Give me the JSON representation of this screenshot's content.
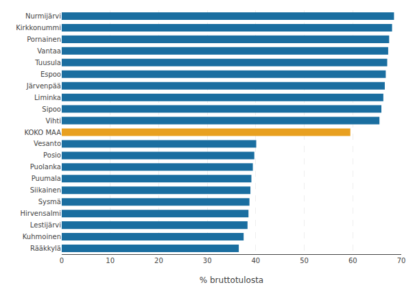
{
  "chart_data": {
    "type": "bar",
    "orientation": "horizontal",
    "categories": [
      "Rääkkylä",
      "Kuhmoinen",
      "Lestijärvi",
      "Hirvensalmi",
      "Sysmä",
      "Siikainen",
      "Puumala",
      "Puolanka",
      "Posio",
      "Vesanto",
      "KOKO MAA",
      "Vihti",
      "Sipoo",
      "Liminka",
      "Järvenpää",
      "Espoo",
      "Tuusula",
      "Vantaa",
      "Pornainen",
      "Kirkkonummi",
      "Nurmijärvi"
    ],
    "values": [
      36.5,
      37.5,
      38.3,
      38.5,
      38.7,
      38.9,
      39.1,
      39.4,
      39.7,
      40.1,
      59.5,
      65.5,
      65.9,
      66.3,
      66.6,
      66.8,
      67.1,
      67.3,
      67.5,
      68.1,
      68.5
    ],
    "colors": [
      "#1a6ea0",
      "#1a6ea0",
      "#1a6ea0",
      "#1a6ea0",
      "#1a6ea0",
      "#1a6ea0",
      "#1a6ea0",
      "#1a6ea0",
      "#1a6ea0",
      "#1a6ea0",
      "#E8A020",
      "#1a6ea0",
      "#1a6ea0",
      "#1a6ea0",
      "#1a6ea0",
      "#1a6ea0",
      "#1a6ea0",
      "#1a6ea0",
      "#1a6ea0",
      "#1a6ea0",
      "#1a6ea0"
    ],
    "xlabel": "% bruttotulosta",
    "xlim": [
      0,
      70
    ],
    "xticks": [
      0,
      10,
      20,
      30,
      40,
      50,
      60,
      70
    ],
    "grid": true
  }
}
